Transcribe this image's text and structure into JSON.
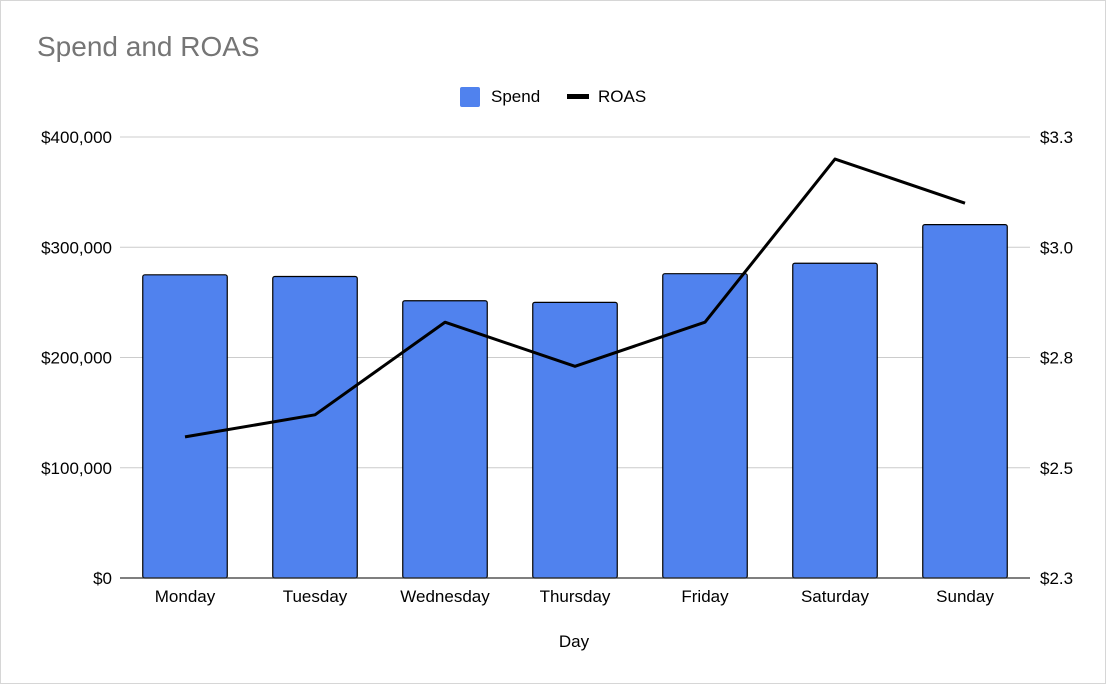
{
  "chart_data": {
    "type": "bar",
    "title": "Spend and ROAS",
    "xlabel": "Day",
    "categories": [
      "Monday",
      "Tuesday",
      "Wednesday",
      "Thursday",
      "Friday",
      "Saturday",
      "Sunday"
    ],
    "series": [
      {
        "name": "Spend",
        "type": "bar",
        "axis": "left",
        "color": "#5082EE",
        "values": [
          275000,
          273500,
          251500,
          250000,
          276000,
          285500,
          320500
        ]
      },
      {
        "name": "ROAS",
        "type": "line",
        "axis": "right",
        "color": "#000000",
        "values": [
          2.62,
          2.67,
          2.88,
          2.78,
          2.88,
          3.25,
          3.15
        ]
      }
    ],
    "y_left": {
      "ylim": [
        0,
        400000
      ],
      "ticks": [
        0,
        100000,
        200000,
        300000,
        400000
      ],
      "tick_labels": [
        "$0",
        "$100,000",
        "$200,000",
        "$300,000",
        "$400,000"
      ]
    },
    "y_right": {
      "ylim": [
        2.3,
        3.3
      ],
      "ticks": [
        2.3,
        2.55,
        2.8,
        3.05,
        3.3
      ],
      "tick_labels": [
        "$2.3",
        "$2.5",
        "$2.8",
        "$3.0",
        "$3.3"
      ]
    },
    "grid": true,
    "legend": "top-center"
  }
}
